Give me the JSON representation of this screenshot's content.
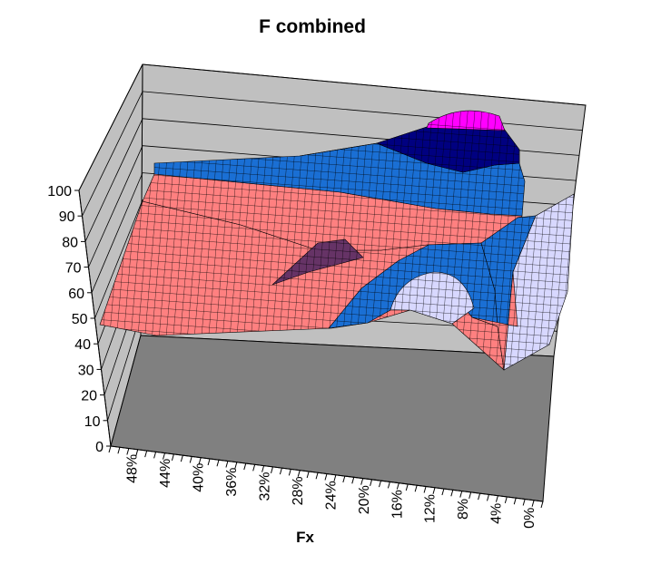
{
  "chart_data": {
    "type": "surface",
    "title": "F combined",
    "xlabel": "Fx",
    "x_ticks": [
      "48%",
      "44%",
      "40%",
      "36%",
      "32%",
      "28%",
      "24%",
      "20%",
      "16%",
      "12%",
      "8%",
      "4%",
      "0%"
    ],
    "z_ticks": [
      "0",
      "10",
      "20",
      "30",
      "40",
      "50",
      "60",
      "70",
      "80",
      "90",
      "100"
    ],
    "zlim": [
      0,
      100
    ],
    "grid": true,
    "band_colors": {
      "40-50": "#8080ff",
      "50-60": "#ff8080",
      "60-70": "#ff8080",
      "70-80": "#1a6fd4",
      "80-90": "#d8d8ff",
      "90-100": "#1a6fd4",
      "100-110": "#000080",
      "110-120": "#ff00ff"
    },
    "walls": {
      "back": "#c0c0c0",
      "floor": "#808080"
    },
    "surface_profile_back_row": [
      {
        "x": "48%",
        "z": 92
      },
      {
        "x": "24%",
        "z": 96
      },
      {
        "x": "16%",
        "z": 104
      },
      {
        "x": "12%",
        "z": 116
      },
      {
        "x": "8%",
        "z": 114
      },
      {
        "x": "4%",
        "z": 88
      },
      {
        "x": "0%",
        "z": 86
      }
    ],
    "surface_profile_front_row": [
      {
        "x": "48%",
        "z": 52
      },
      {
        "x": "36%",
        "z": 54
      },
      {
        "x": "24%",
        "z": 58
      },
      {
        "x": "16%",
        "z": 64
      },
      {
        "x": "8%",
        "z": 62
      },
      {
        "x": "4%",
        "z": 26
      },
      {
        "x": "0%",
        "z": 94
      }
    ]
  }
}
